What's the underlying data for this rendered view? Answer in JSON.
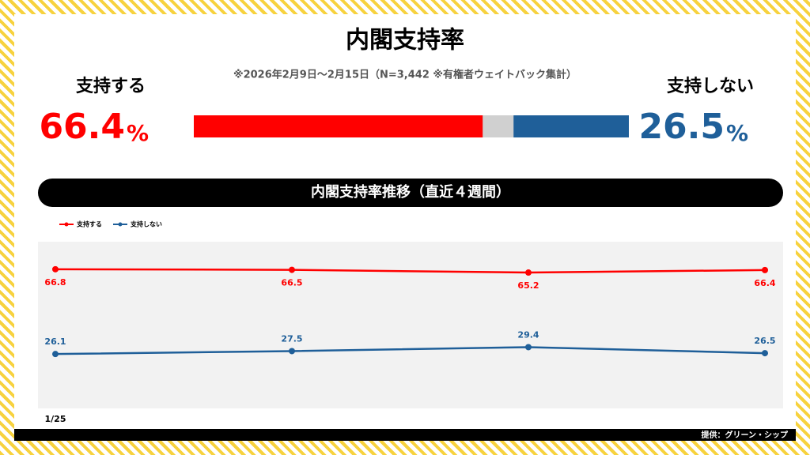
{
  "chart_data": [
    {
      "type": "stacked-bar",
      "title": "内閣支持率",
      "subtitle": "※2026年2月9日～2月15日（N=3,442 ※有権者ウェイトバック集計）",
      "xlim": [
        0,
        100
      ],
      "series": [
        {
          "name": "支持する",
          "color": "#ff0000",
          "values": [
            66.4
          ],
          "unit": "%"
        },
        {
          "name": "支持しない",
          "color": "#1f5f99",
          "values": [
            26.5
          ],
          "unit": "%"
        }
      ]
    },
    {
      "type": "line",
      "title": "内閣支持率推移（直近４週間）",
      "categories": [
        "1/25",
        null,
        null,
        null
      ],
      "ylim": [
        0,
        80
      ],
      "series": [
        {
          "name": "支持する",
          "color": "#ff0000",
          "values": [
            66.8,
            66.5,
            65.2,
            66.4
          ]
        },
        {
          "name": "支持しない",
          "color": "#1f5f99",
          "values": [
            26.1,
            27.5,
            29.4,
            26.5
          ]
        }
      ],
      "source": "提供：グリーン・シップ"
    }
  ]
}
